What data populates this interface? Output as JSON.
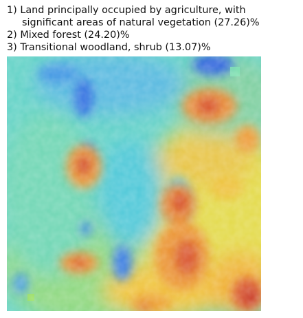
{
  "caption": {
    "lines": [
      "1) Land principally occupied by agriculture, with",
      "significant areas of natural vegetation (27.26)%",
      "2) Mixed forest (24.20)%",
      "3) Transitional woodland, shrub (13.07)%"
    ]
  },
  "image": {
    "subject": "false-color heatmap overlay on satellite tile",
    "palette": [
      "#2f5fdd",
      "#3aa6e8",
      "#5fd6d0",
      "#7fd98a",
      "#e8e04a",
      "#f0a030",
      "#dd4a2a"
    ]
  }
}
